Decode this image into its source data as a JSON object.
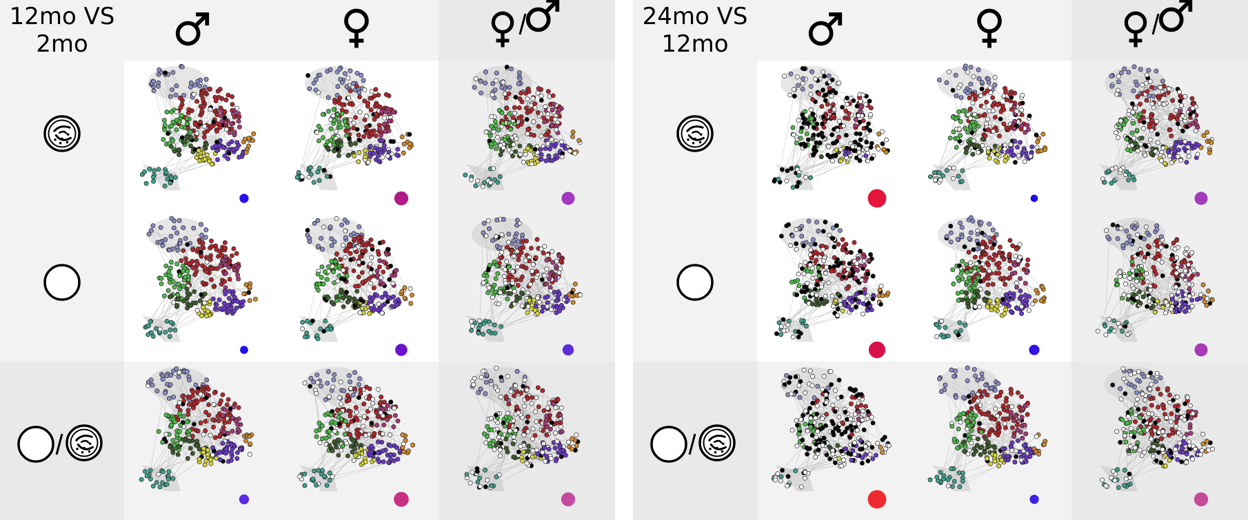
{
  "panels": [
    {
      "title_line1": "12mo VS",
      "title_line2": "2mo",
      "columns": [
        "male-icon",
        "female-icon",
        "female-over-male-icon"
      ],
      "rows": [
        "microbe-dish-icon",
        "circle-icon",
        "circle-over-microbe-icon"
      ],
      "dots": [
        [
          {
            "color": "#2a10ee",
            "size": 0.28
          },
          {
            "color": "#b01b86",
            "size": 0.55
          },
          {
            "color": "#a239c0",
            "size": 0.5
          }
        ],
        [
          {
            "color": "#1e12e6",
            "size": 0.22
          },
          {
            "color": "#6a14cc",
            "size": 0.45
          },
          {
            "color": "#5d2fd8",
            "size": 0.4
          }
        ],
        [
          {
            "color": "#5b2ae8",
            "size": 0.32
          },
          {
            "color": "#c83084",
            "size": 0.6
          },
          {
            "color": "#c34aa0",
            "size": 0.55
          }
        ]
      ]
    },
    {
      "title_line1": "24mo VS",
      "title_line2": "12mo",
      "columns": [
        "male-icon",
        "female-icon",
        "female-over-male-icon"
      ],
      "rows": [
        "microbe-dish-icon",
        "circle-icon",
        "circle-over-microbe-icon"
      ],
      "dots": [
        [
          {
            "color": "#e5143a",
            "size": 0.8
          },
          {
            "color": "#1a12e2",
            "size": 0.18
          },
          {
            "color": "#a23bbd",
            "size": 0.5
          }
        ],
        [
          {
            "color": "#d8104a",
            "size": 0.7
          },
          {
            "color": "#3410e2",
            "size": 0.35
          },
          {
            "color": "#a83ab6",
            "size": 0.5
          }
        ],
        [
          {
            "color": "#ee2a30",
            "size": 0.8
          },
          {
            "color": "#3b20e6",
            "size": 0.28
          },
          {
            "color": "#c44a98",
            "size": 0.55
          }
        ]
      ]
    }
  ]
}
